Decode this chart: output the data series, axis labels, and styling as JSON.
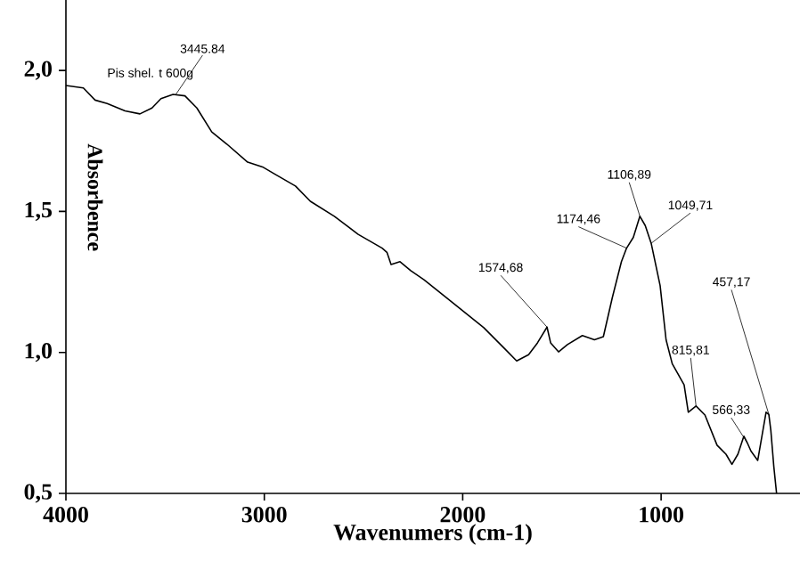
{
  "chart_data": {
    "type": "line",
    "xlabel": "Wavenumers (cm-1)",
    "ylabel": "Absorbence",
    "xlim": [
      4000,
      300
    ],
    "ylim": [
      0.5,
      2.25
    ],
    "xticks": [
      4000,
      3000,
      2000,
      1000
    ],
    "yticks": [
      {
        "value": 0.5,
        "label": "0,5"
      },
      {
        "value": 1.0,
        "label": "1,0"
      },
      {
        "value": 1.5,
        "label": "1,5"
      },
      {
        "value": 2.0,
        "label": "2,0"
      }
    ],
    "grid": false,
    "legend": false,
    "marker": "none",
    "line_style": "solid",
    "series": [
      {
        "name": "Pis shel. t 600g",
        "color": "#000000",
        "x": [
          4000,
          3912,
          3853,
          3792,
          3702,
          3627,
          3566,
          3521,
          3460,
          3400,
          3340,
          3265,
          3189,
          3084,
          3009,
          2948,
          2843,
          2768,
          2647,
          2527,
          2406,
          2382,
          2361,
          2316,
          2262,
          2195,
          2045,
          1894,
          1788,
          1728,
          1668,
          1623,
          1575,
          1557,
          1517,
          1472,
          1397,
          1336,
          1291,
          1246,
          1200,
          1174,
          1140,
          1107,
          1080,
          1050,
          1005,
          975,
          944,
          884,
          863,
          824,
          779,
          718,
          673,
          643,
          613,
          583,
          566,
          547,
          513,
          471,
          457,
          447,
          432,
          418
        ],
        "values": [
          1.947,
          1.938,
          1.895,
          1.883,
          1.857,
          1.846,
          1.867,
          1.9,
          1.915,
          1.91,
          1.867,
          1.782,
          1.739,
          1.675,
          1.658,
          1.633,
          1.59,
          1.536,
          1.483,
          1.419,
          1.37,
          1.355,
          1.312,
          1.322,
          1.29,
          1.258,
          1.173,
          1.088,
          1.013,
          0.97,
          0.992,
          1.034,
          1.09,
          1.034,
          1.002,
          1.028,
          1.06,
          1.045,
          1.056,
          1.194,
          1.322,
          1.37,
          1.408,
          1.483,
          1.45,
          1.387,
          1.237,
          1.045,
          0.96,
          0.885,
          0.788,
          0.81,
          0.778,
          0.671,
          0.639,
          0.603,
          0.639,
          0.703,
          0.68,
          0.65,
          0.617,
          0.788,
          0.78,
          0.724,
          0.596,
          0.5
        ]
      }
    ],
    "annotations": [
      {
        "text": "3445.84",
        "x": 3446,
        "y": 1.915
      },
      {
        "text": "1574,68",
        "x": 1575,
        "y": 1.09
      },
      {
        "text": "1174,46",
        "x": 1174,
        "y": 1.37
      },
      {
        "text": "1106,89",
        "x": 1107,
        "y": 1.483
      },
      {
        "text": "1049,71",
        "x": 1050,
        "y": 1.387
      },
      {
        "text": "815,81",
        "x": 824,
        "y": 0.81
      },
      {
        "text": "566,33",
        "x": 566,
        "y": 0.68
      },
      {
        "text": "457,17",
        "x": 457,
        "y": 0.78
      }
    ]
  }
}
